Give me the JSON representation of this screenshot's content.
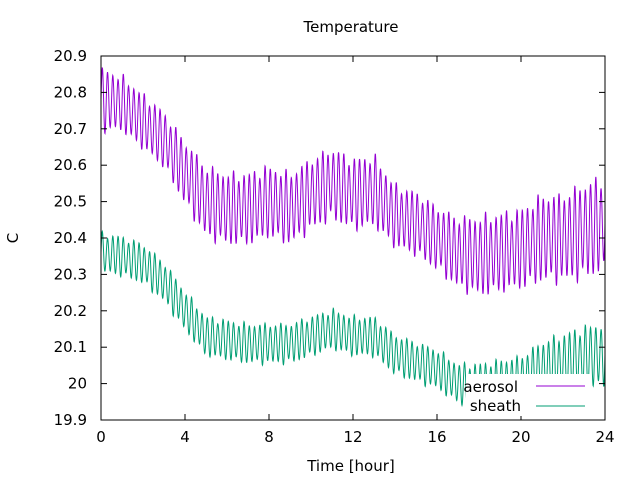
{
  "chart_data": {
    "type": "line",
    "title": "Temperature",
    "xlabel": "Time [hour]",
    "ylabel": "C",
    "xlim": [
      0,
      24
    ],
    "ylim": [
      19.9,
      20.9
    ],
    "xticks": [
      0,
      4,
      8,
      12,
      16,
      20,
      24
    ],
    "yticks": [
      19.9,
      20,
      20.1,
      20.2,
      20.3,
      20.4,
      20.5,
      20.6,
      20.7,
      20.8,
      20.9
    ],
    "xtick_labels": [
      "0",
      "4",
      "8",
      "12",
      "16",
      "20",
      "24"
    ],
    "ytick_labels": [
      "19.9",
      "20",
      "20.1",
      "20.2",
      "20.3",
      "20.4",
      "20.5",
      "20.6",
      "20.7",
      "20.8",
      "20.9"
    ],
    "grid": false,
    "legend_position": "bottom-right",
    "oscillation_period_hours": 0.25,
    "series": [
      {
        "name": "aerosol",
        "color": "#9400d3",
        "x": [
          0,
          1,
          2,
          3,
          4,
          5,
          6,
          7,
          8,
          9,
          10,
          11,
          12,
          13,
          14,
          15,
          16,
          17,
          18,
          19,
          20,
          21,
          22,
          23,
          24
        ],
        "center": [
          20.78,
          20.77,
          20.72,
          20.67,
          20.58,
          20.5,
          20.48,
          20.48,
          20.5,
          20.48,
          20.52,
          20.55,
          20.52,
          20.53,
          20.46,
          20.44,
          20.4,
          20.36,
          20.35,
          20.36,
          20.37,
          20.4,
          20.4,
          20.42,
          20.44
        ],
        "amplitude": [
          0.08,
          0.07,
          0.07,
          0.07,
          0.08,
          0.09,
          0.09,
          0.09,
          0.09,
          0.09,
          0.09,
          0.09,
          0.09,
          0.09,
          0.08,
          0.08,
          0.08,
          0.09,
          0.1,
          0.1,
          0.1,
          0.11,
          0.11,
          0.12,
          0.12
        ]
      },
      {
        "name": "sheath",
        "color": "#009e73",
        "x": [
          0,
          1,
          2,
          3,
          4,
          5,
          6,
          7,
          8,
          9,
          10,
          11,
          12,
          13,
          14,
          15,
          16,
          17,
          18,
          19,
          20,
          21,
          22,
          23,
          24
        ],
        "center": [
          20.36,
          20.35,
          20.33,
          20.28,
          20.2,
          20.13,
          20.12,
          20.11,
          20.11,
          20.11,
          20.13,
          20.15,
          20.13,
          20.13,
          20.08,
          20.06,
          20.04,
          20.0,
          19.99,
          20.0,
          20.01,
          20.04,
          20.05,
          20.07,
          20.08
        ],
        "amplitude": [
          0.05,
          0.05,
          0.05,
          0.05,
          0.05,
          0.05,
          0.05,
          0.05,
          0.05,
          0.05,
          0.05,
          0.05,
          0.05,
          0.05,
          0.05,
          0.05,
          0.05,
          0.05,
          0.06,
          0.06,
          0.06,
          0.07,
          0.08,
          0.08,
          0.08
        ]
      }
    ],
    "legend": [
      {
        "label": "aerosol",
        "color": "#9400d3"
      },
      {
        "label": "sheath",
        "color": "#009e73"
      }
    ]
  }
}
